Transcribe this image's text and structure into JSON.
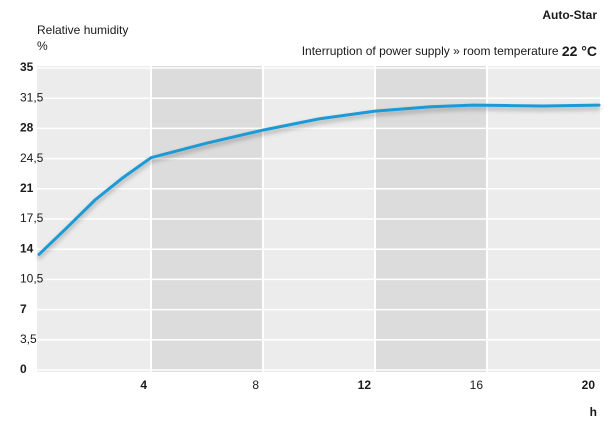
{
  "chart_data": {
    "type": "line",
    "title": "Auto-Star",
    "subtitle": "Interruption of power supply » room temperature ",
    "subtitle_emphasis": "22 °C",
    "y_label": "Relative humidity",
    "y_unit": "%",
    "x_label": "h",
    "x": [
      0,
      1,
      2,
      3,
      4,
      6,
      8,
      10,
      12,
      14,
      15.5,
      18,
      20
    ],
    "series": [
      {
        "name": "Auto-Star",
        "color": "#1a9ad6",
        "values": [
          13.4,
          16.5,
          19.7,
          22.3,
          24.6,
          26.3,
          27.8,
          29.1,
          30.0,
          30.5,
          30.7,
          30.6,
          30.7
        ]
      }
    ],
    "xlim": [
      0,
      20
    ],
    "xticks": [
      4,
      8,
      12,
      16,
      20
    ],
    "ylim": [
      0,
      35
    ],
    "yticks": [
      0,
      {
        "value": 3.5,
        "label": "3,5"
      },
      7,
      {
        "value": 10.5,
        "label": "10,5"
      },
      14,
      {
        "value": 17.5,
        "label": "17,5"
      },
      21,
      {
        "value": 24.5,
        "label": "24,5"
      },
      28,
      {
        "value": 31.5,
        "label": "31,5"
      },
      35
    ],
    "grid": true
  }
}
